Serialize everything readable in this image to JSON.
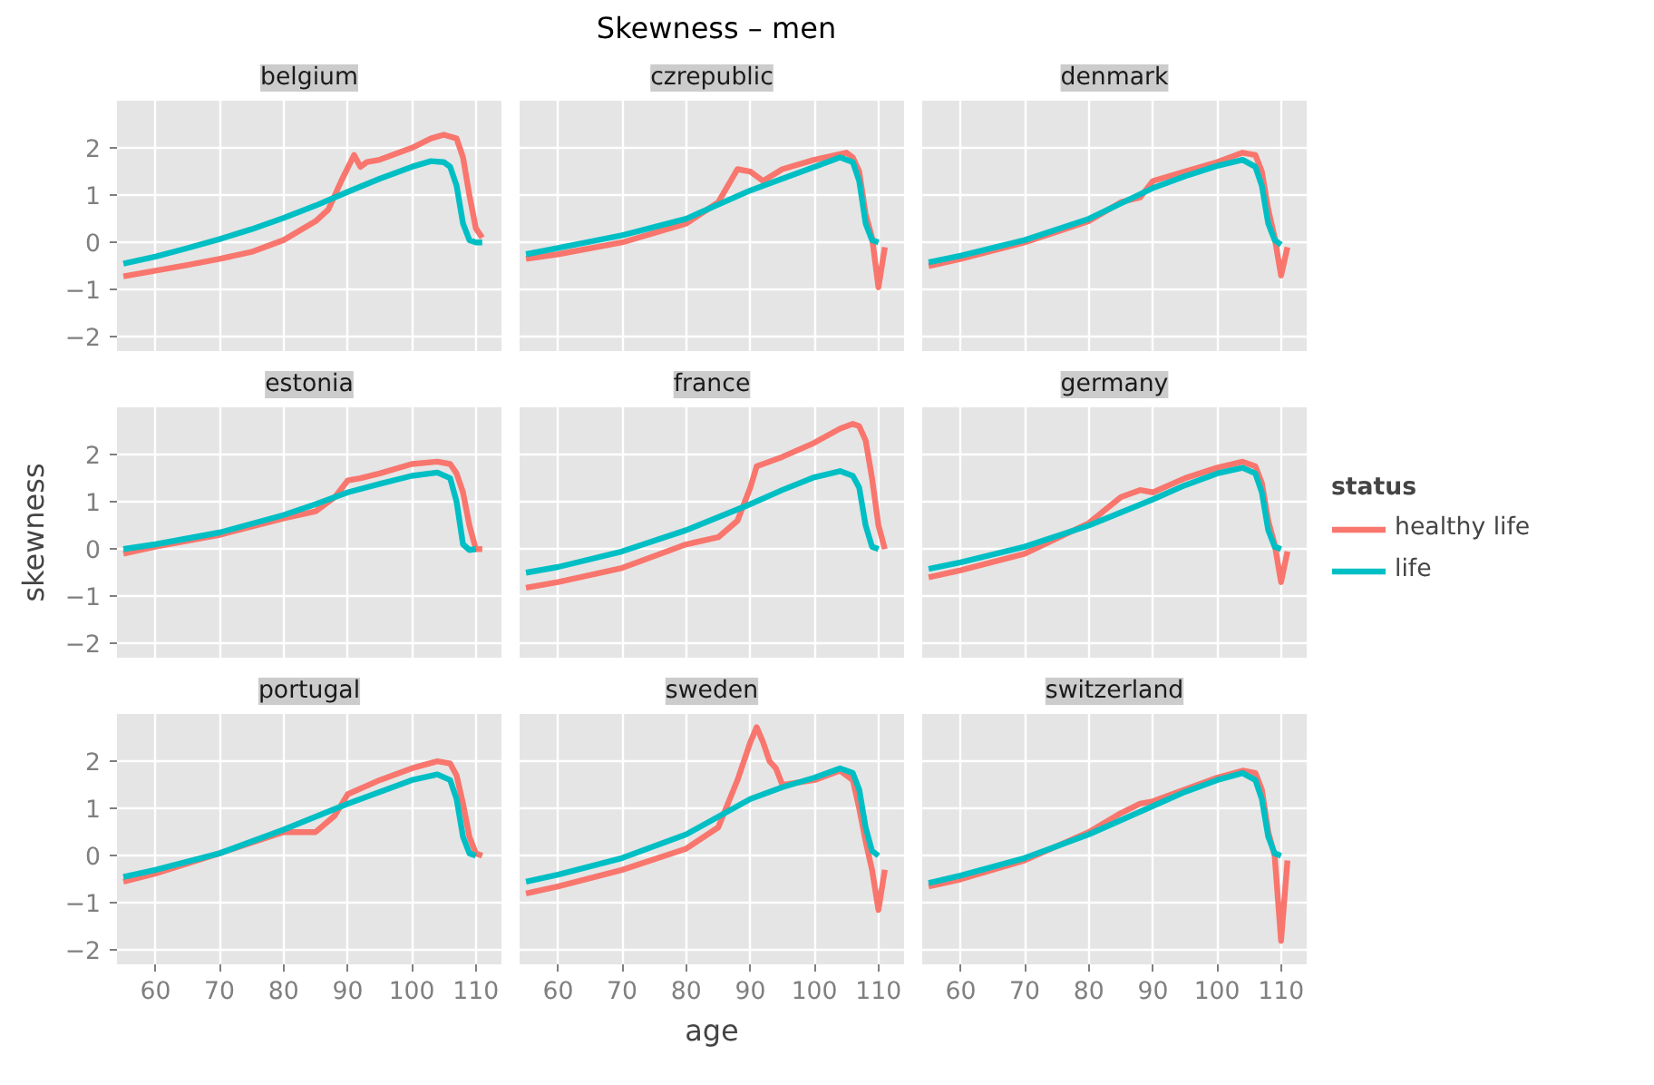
{
  "chart_data": [
    {
      "type": "line",
      "title": "belgium",
      "annotations": [
        "Skewness – men"
      ],
      "xlim": [
        54,
        114
      ],
      "ylim": [
        -2.3,
        3.0
      ],
      "xticks": [
        60,
        70,
        80,
        90,
        100,
        110
      ],
      "yticks": [
        -2,
        -1,
        0,
        1,
        2
      ],
      "grid": true,
      "tick_labels": "y",
      "series": [
        {
          "color": "#f8766d",
          "x": [
            55,
            60,
            65,
            70,
            75,
            80,
            85,
            87,
            89,
            91,
            92,
            93,
            95,
            100,
            103,
            105,
            107,
            108,
            109,
            110,
            111
          ],
          "values": [
            -0.72,
            -0.6,
            -0.48,
            -0.35,
            -0.2,
            0.05,
            0.45,
            0.7,
            1.3,
            1.85,
            1.6,
            1.7,
            1.75,
            2.0,
            2.2,
            2.28,
            2.2,
            1.8,
            1.0,
            0.3,
            0.1
          ]
        },
        {
          "color": "#00bfc4",
          "x": [
            55,
            60,
            65,
            70,
            75,
            80,
            85,
            90,
            95,
            100,
            103,
            105,
            106,
            107,
            108,
            109,
            110,
            111
          ],
          "values": [
            -0.45,
            -0.3,
            -0.12,
            0.07,
            0.28,
            0.52,
            0.78,
            1.07,
            1.35,
            1.6,
            1.72,
            1.7,
            1.6,
            1.2,
            0.4,
            0.05,
            0.0,
            0.0
          ]
        }
      ]
    },
    {
      "type": "line",
      "title": "czrepublic",
      "xlim": [
        54,
        114
      ],
      "ylim": [
        -2.3,
        3.0
      ],
      "xticks": [
        60,
        70,
        80,
        90,
        100,
        110
      ],
      "yticks": [
        -2,
        -1,
        0,
        1,
        2
      ],
      "grid": true,
      "tick_labels": false,
      "series": [
        {
          "color": "#f8766d",
          "x": [
            55,
            60,
            70,
            80,
            85,
            88,
            90,
            92,
            95,
            100,
            105,
            106,
            107,
            108,
            109,
            110,
            111
          ],
          "values": [
            -0.35,
            -0.25,
            0.0,
            0.4,
            0.85,
            1.55,
            1.5,
            1.3,
            1.55,
            1.75,
            1.9,
            1.8,
            1.5,
            0.6,
            0.1,
            -0.95,
            -0.1
          ]
        },
        {
          "color": "#00bfc4",
          "x": [
            55,
            60,
            70,
            80,
            90,
            95,
            100,
            104,
            106,
            107,
            108,
            109,
            110
          ],
          "values": [
            -0.25,
            -0.12,
            0.15,
            0.5,
            1.1,
            1.35,
            1.6,
            1.8,
            1.7,
            1.3,
            0.4,
            0.05,
            0.0
          ]
        }
      ]
    },
    {
      "type": "line",
      "title": "denmark",
      "xlim": [
        54,
        114
      ],
      "ylim": [
        -2.3,
        3.0
      ],
      "xticks": [
        60,
        70,
        80,
        90,
        100,
        110
      ],
      "yticks": [
        -2,
        -1,
        0,
        1,
        2
      ],
      "grid": true,
      "tick_labels": false,
      "series": [
        {
          "color": "#f8766d",
          "x": [
            55,
            60,
            70,
            80,
            85,
            88,
            90,
            95,
            100,
            104,
            106,
            107,
            108,
            109,
            110,
            111
          ],
          "values": [
            -0.5,
            -0.35,
            0.0,
            0.45,
            0.85,
            0.95,
            1.3,
            1.5,
            1.7,
            1.9,
            1.85,
            1.5,
            0.7,
            0.1,
            -0.7,
            -0.1
          ]
        },
        {
          "color": "#00bfc4",
          "x": [
            55,
            60,
            70,
            80,
            90,
            95,
            100,
            104,
            106,
            107,
            108,
            109,
            110
          ],
          "values": [
            -0.42,
            -0.28,
            0.05,
            0.5,
            1.15,
            1.4,
            1.62,
            1.75,
            1.6,
            1.2,
            0.4,
            0.05,
            -0.05
          ]
        }
      ]
    },
    {
      "type": "line",
      "title": "estonia",
      "ylabel": "skewness",
      "xlim": [
        54,
        114
      ],
      "ylim": [
        -2.3,
        3.0
      ],
      "xticks": [
        60,
        70,
        80,
        90,
        100,
        110
      ],
      "yticks": [
        -2,
        -1,
        0,
        1,
        2
      ],
      "grid": true,
      "tick_labels": "y",
      "series": [
        {
          "color": "#f8766d",
          "x": [
            55,
            60,
            70,
            80,
            85,
            88,
            90,
            92,
            95,
            100,
            104,
            106,
            107,
            108,
            109,
            110,
            111
          ],
          "values": [
            -0.1,
            0.05,
            0.3,
            0.65,
            0.8,
            1.1,
            1.45,
            1.5,
            1.6,
            1.8,
            1.85,
            1.8,
            1.6,
            1.2,
            0.5,
            0.0,
            0.0
          ]
        },
        {
          "color": "#00bfc4",
          "x": [
            55,
            60,
            70,
            80,
            85,
            90,
            95,
            100,
            104,
            106,
            107,
            108,
            109,
            110
          ],
          "values": [
            0.0,
            0.1,
            0.35,
            0.72,
            0.95,
            1.2,
            1.38,
            1.55,
            1.62,
            1.5,
            1.0,
            0.1,
            -0.02,
            0.0
          ]
        }
      ]
    },
    {
      "type": "line",
      "title": "france",
      "xlim": [
        54,
        114
      ],
      "ylim": [
        -2.3,
        3.0
      ],
      "xticks": [
        60,
        70,
        80,
        90,
        100,
        110
      ],
      "yticks": [
        -2,
        -1,
        0,
        1,
        2
      ],
      "grid": true,
      "tick_labels": false,
      "series": [
        {
          "color": "#f8766d",
          "x": [
            55,
            60,
            70,
            80,
            85,
            88,
            90,
            91,
            95,
            100,
            104,
            106,
            107,
            108,
            109,
            110,
            111
          ],
          "values": [
            -0.82,
            -0.7,
            -0.4,
            0.1,
            0.25,
            0.6,
            1.3,
            1.75,
            1.95,
            2.25,
            2.55,
            2.65,
            2.6,
            2.3,
            1.5,
            0.5,
            0.0
          ]
        },
        {
          "color": "#00bfc4",
          "x": [
            55,
            60,
            70,
            80,
            90,
            95,
            100,
            104,
            106,
            107,
            108,
            109,
            110
          ],
          "values": [
            -0.5,
            -0.38,
            -0.05,
            0.4,
            0.95,
            1.25,
            1.52,
            1.65,
            1.55,
            1.3,
            0.5,
            0.05,
            0.0
          ]
        }
      ]
    },
    {
      "type": "line",
      "title": "germany",
      "legend": "right",
      "legend_title": "status",
      "xlim": [
        54,
        114
      ],
      "ylim": [
        -2.3,
        3.0
      ],
      "xticks": [
        60,
        70,
        80,
        90,
        100,
        110
      ],
      "yticks": [
        -2,
        -1,
        0,
        1,
        2
      ],
      "grid": true,
      "tick_labels": false,
      "series": [
        {
          "name": "healthy life",
          "color": "#f8766d",
          "x": [
            55,
            60,
            70,
            80,
            85,
            88,
            90,
            95,
            100,
            104,
            106,
            107,
            108,
            109,
            110,
            111
          ],
          "values": [
            -0.6,
            -0.45,
            -0.1,
            0.55,
            1.1,
            1.25,
            1.2,
            1.5,
            1.72,
            1.85,
            1.75,
            1.4,
            0.6,
            0.1,
            -0.7,
            -0.05
          ]
        },
        {
          "name": "life",
          "color": "#00bfc4",
          "x": [
            55,
            60,
            70,
            80,
            90,
            95,
            100,
            104,
            106,
            107,
            108,
            109,
            110
          ],
          "values": [
            -0.42,
            -0.28,
            0.05,
            0.5,
            1.05,
            1.35,
            1.6,
            1.72,
            1.6,
            1.2,
            0.4,
            0.05,
            0.0
          ]
        }
      ]
    },
    {
      "type": "line",
      "title": "portugal",
      "xlim": [
        54,
        114
      ],
      "ylim": [
        -2.3,
        3.0
      ],
      "xticks": [
        60,
        70,
        80,
        90,
        100,
        110
      ],
      "yticks": [
        -2,
        -1,
        0,
        1,
        2
      ],
      "grid": true,
      "series": [
        {
          "color": "#f8766d",
          "x": [
            55,
            60,
            70,
            80,
            85,
            88,
            90,
            95,
            100,
            104,
            106,
            107,
            108,
            109,
            110,
            111
          ],
          "values": [
            -0.55,
            -0.38,
            0.05,
            0.5,
            0.5,
            0.85,
            1.3,
            1.6,
            1.85,
            2.0,
            1.95,
            1.7,
            1.1,
            0.4,
            0.05,
            0.0
          ]
        },
        {
          "color": "#00bfc4",
          "x": [
            55,
            60,
            70,
            80,
            90,
            95,
            100,
            104,
            106,
            107,
            108,
            109,
            110
          ],
          "values": [
            -0.45,
            -0.3,
            0.05,
            0.55,
            1.1,
            1.35,
            1.6,
            1.72,
            1.6,
            1.2,
            0.4,
            0.05,
            0.0
          ]
        }
      ]
    },
    {
      "type": "line",
      "title": "sweden",
      "xlabel": "age",
      "xlim": [
        54,
        114
      ],
      "ylim": [
        -2.3,
        3.0
      ],
      "xticks": [
        60,
        70,
        80,
        90,
        100,
        110
      ],
      "yticks": [
        -2,
        -1,
        0,
        1,
        2
      ],
      "grid": true,
      "tick_labels": "x",
      "series": [
        {
          "color": "#f8766d",
          "x": [
            55,
            60,
            70,
            80,
            85,
            88,
            90,
            91,
            92,
            93,
            94,
            95,
            100,
            104,
            106,
            107,
            108,
            109,
            110,
            111
          ],
          "values": [
            -0.8,
            -0.65,
            -0.3,
            0.15,
            0.6,
            1.6,
            2.4,
            2.72,
            2.4,
            2.0,
            1.85,
            1.5,
            1.6,
            1.8,
            1.6,
            1.0,
            0.3,
            -0.3,
            -1.15,
            -0.3
          ]
        },
        {
          "color": "#00bfc4",
          "x": [
            55,
            60,
            70,
            80,
            90,
            95,
            100,
            104,
            106,
            107,
            108,
            109,
            110
          ],
          "values": [
            -0.55,
            -0.4,
            -0.05,
            0.45,
            1.2,
            1.45,
            1.65,
            1.85,
            1.75,
            1.4,
            0.6,
            0.1,
            0.0
          ]
        }
      ]
    },
    {
      "type": "line",
      "title": "switzerland",
      "xlim": [
        54,
        114
      ],
      "ylim": [
        -2.3,
        3.0
      ],
      "xticks": [
        60,
        70,
        80,
        90,
        100,
        110
      ],
      "yticks": [
        -2,
        -1,
        0,
        1,
        2
      ],
      "grid": true,
      "tick_labels": "x",
      "series": [
        {
          "color": "#f8766d",
          "x": [
            55,
            60,
            70,
            80,
            85,
            88,
            90,
            95,
            100,
            104,
            106,
            107,
            108,
            109,
            110,
            111
          ],
          "values": [
            -0.65,
            -0.5,
            -0.1,
            0.5,
            0.9,
            1.1,
            1.15,
            1.4,
            1.65,
            1.8,
            1.75,
            1.4,
            0.5,
            0.0,
            -1.8,
            -0.1
          ]
        },
        {
          "color": "#00bfc4",
          "x": [
            55,
            60,
            70,
            80,
            90,
            95,
            100,
            104,
            106,
            107,
            108,
            109,
            110
          ],
          "values": [
            -0.58,
            -0.42,
            -0.05,
            0.45,
            1.05,
            1.35,
            1.6,
            1.75,
            1.6,
            1.2,
            0.4,
            0.05,
            0.0
          ]
        }
      ]
    }
  ]
}
